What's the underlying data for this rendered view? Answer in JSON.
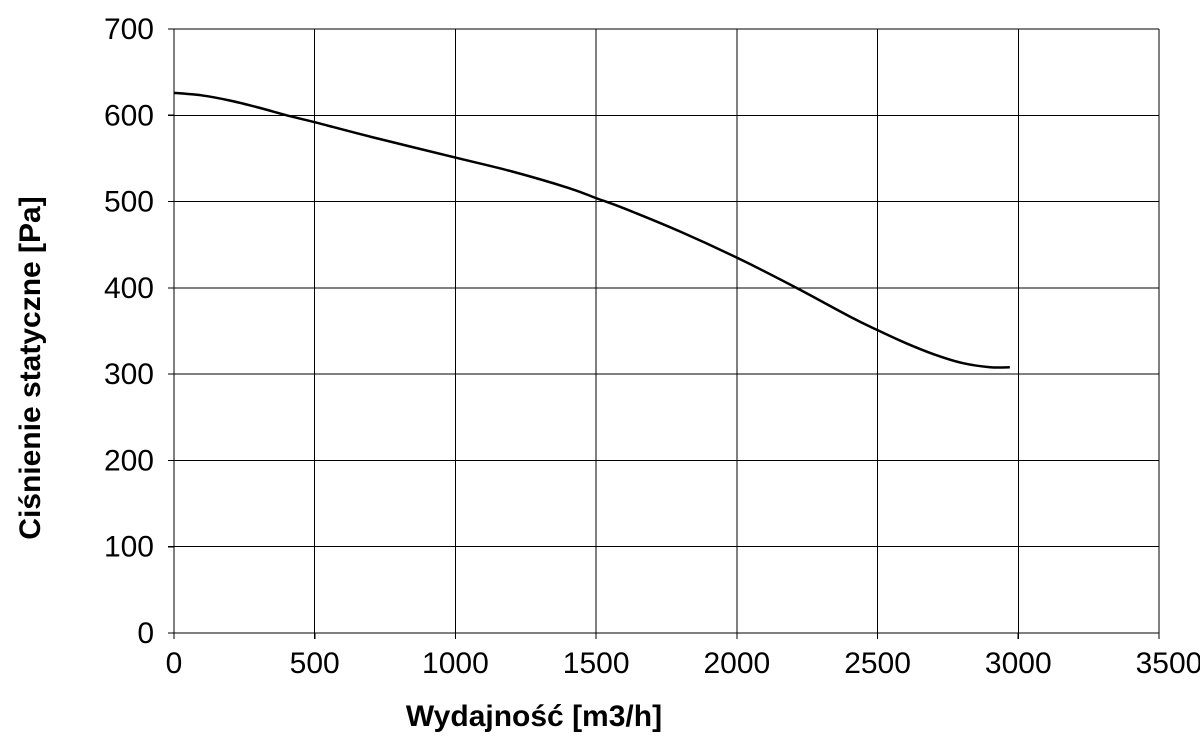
{
  "chart_data": {
    "type": "line",
    "title": "",
    "xlabel": "Wydajność [m3/h]",
    "ylabel": "Ciśnienie statyczne [Pa]",
    "xlim": [
      0,
      3500
    ],
    "ylim": [
      0,
      700
    ],
    "xticks": [
      0,
      500,
      1000,
      1500,
      2000,
      2500,
      3000,
      3500
    ],
    "yticks": [
      0,
      100,
      200,
      300,
      400,
      500,
      600,
      700
    ],
    "x_tick_labels": [
      "0",
      "500",
      "1000",
      "1500",
      "2000",
      "2500",
      "3000",
      "3500"
    ],
    "y_tick_labels": [
      "0",
      "100",
      "200",
      "300",
      "400",
      "500",
      "600",
      "700"
    ],
    "grid": true,
    "legend": "none",
    "line_color": "#000000",
    "series": [
      {
        "values": [
          [
            0,
            626
          ],
          [
            100,
            623
          ],
          [
            200,
            617
          ],
          [
            300,
            609
          ],
          [
            400,
            600
          ],
          [
            500,
            592
          ],
          [
            700,
            575
          ],
          [
            1000,
            551
          ],
          [
            1200,
            535
          ],
          [
            1400,
            516
          ],
          [
            1500,
            504
          ],
          [
            1600,
            492
          ],
          [
            1800,
            465
          ],
          [
            2000,
            435
          ],
          [
            2200,
            402
          ],
          [
            2400,
            367
          ],
          [
            2500,
            351
          ],
          [
            2600,
            336
          ],
          [
            2700,
            323
          ],
          [
            2800,
            313
          ],
          [
            2900,
            308
          ],
          [
            2970,
            308
          ]
        ]
      }
    ]
  }
}
